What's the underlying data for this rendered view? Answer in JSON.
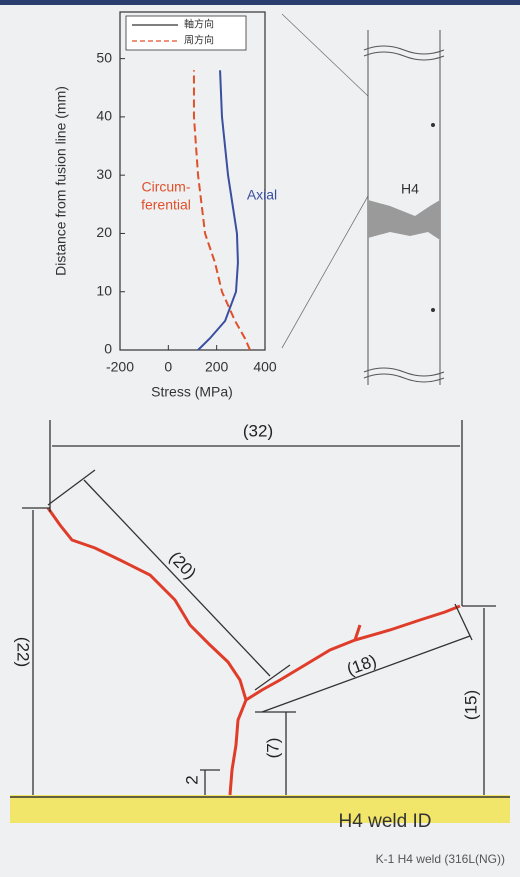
{
  "chart_data": {
    "type": "line",
    "x_label": "Stress (MPa)",
    "y_label": "Distance from fusion line (mm)",
    "y": [
      0,
      2,
      5,
      10,
      15,
      20,
      30,
      40,
      48
    ],
    "series": [
      {
        "name": "軸方向",
        "color": "#3a4fa0",
        "dash": false,
        "values": [
          123,
          172,
          235,
          280,
          288,
          284,
          247,
          222,
          214
        ]
      },
      {
        "name": "周方向",
        "color": "#e0502a",
        "dash": true,
        "values": [
          338,
          317,
          276,
          222,
          193,
          152,
          123,
          106,
          106
        ]
      }
    ],
    "xlim": [
      -200,
      400
    ],
    "xticks": [
      -200,
      0,
      200,
      400
    ],
    "ylim": [
      0,
      58
    ],
    "yticks": [
      0,
      10,
      20,
      30,
      40,
      50
    ],
    "annotations": [
      "Circum-",
      "ferential",
      "Axial"
    ]
  },
  "pipe": {
    "label": "H4"
  },
  "diagram": {
    "dimensions": [
      "(32)",
      "(20)",
      "(22)",
      "(18)",
      "(15)",
      "(7)",
      "2"
    ],
    "base_label": "H4 weld ID",
    "caption": "K-1 H4 weld (316L(NG))"
  }
}
